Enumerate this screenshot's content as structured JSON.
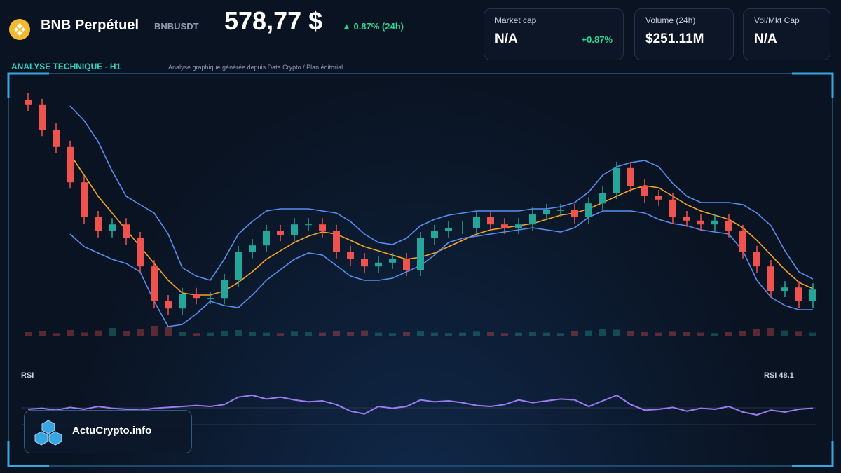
{
  "header": {
    "title": "BNB Perpétuel",
    "symbol": "BNBUSDT",
    "price": "578,77 $",
    "change": "▲ 0.87% (24h)"
  },
  "stats": [
    {
      "label": "Market cap",
      "value": "N/A",
      "extra": "+0.87%"
    },
    {
      "label": "Volume (24h)",
      "value": "$251.11M"
    },
    {
      "label": "Vol/Mkt Cap",
      "value": "N/A"
    }
  ],
  "panel": {
    "title": "ANALYSE TECHNIQUE - H1",
    "subtitle": "Analyse graphique générée depuis Data Crypto / Plan éditorial"
  },
  "brand": "ActuCrypto.info",
  "chart_data": {
    "type": "candlestick",
    "ylim": [
      566,
      626
    ],
    "up_color": "#26a69a",
    "down_color": "#ef5350",
    "ohlc": [
      [
        624,
        625.5,
        621.2,
        622.7
      ],
      [
        622.7,
        624.2,
        615.3,
        616.8
      ],
      [
        616.8,
        618.3,
        611.2,
        612.7
      ],
      [
        612.7,
        614.2,
        602.8,
        604.3
      ],
      [
        604.3,
        605.8,
        594.5,
        596
      ],
      [
        596,
        597.5,
        591.2,
        592.7
      ],
      [
        592.7,
        595.8,
        591.2,
        594.3
      ],
      [
        594.3,
        595.8,
        589.5,
        591
      ],
      [
        591,
        592.5,
        582.8,
        584.3
      ],
      [
        584.3,
        585.8,
        574.5,
        576
      ],
      [
        576,
        577.5,
        572.8,
        574.3
      ],
      [
        574.3,
        579.2,
        572.8,
        577.7
      ],
      [
        577.7,
        579.2,
        575.3,
        576.8
      ],
      [
        576.8,
        578.3,
        575.3,
        576.8
      ],
      [
        576.8,
        582.5,
        575.3,
        581
      ],
      [
        581,
        589.2,
        579.5,
        587.7
      ],
      [
        587.7,
        590.8,
        586.2,
        589.3
      ],
      [
        589.3,
        594.2,
        587.8,
        592.7
      ],
      [
        592.7,
        594.2,
        590.3,
        591.8
      ],
      [
        591.8,
        595.8,
        590.3,
        594.3
      ],
      [
        594.3,
        595.8,
        592.8,
        594.3
      ],
      [
        594.3,
        595.8,
        591.2,
        592.7
      ],
      [
        592.7,
        594.2,
        586.2,
        587.7
      ],
      [
        587.7,
        589.2,
        584.5,
        586
      ],
      [
        586,
        587.5,
        582.8,
        584.3
      ],
      [
        584.3,
        586.7,
        582.8,
        585.2
      ],
      [
        585.2,
        587.5,
        583.7,
        586
      ],
      [
        586,
        587.5,
        582,
        583.5
      ],
      [
        583.5,
        592.5,
        582,
        591
      ],
      [
        591,
        594.2,
        589.5,
        592.7
      ],
      [
        592.7,
        595,
        591.2,
        593.5
      ],
      [
        593.5,
        595,
        592,
        593.5
      ],
      [
        593.5,
        597.5,
        592,
        596
      ],
      [
        596,
        597.5,
        592.8,
        594.3
      ],
      [
        594.3,
        595.8,
        592,
        593.5
      ],
      [
        593.5,
        595.8,
        592,
        594.3
      ],
      [
        594.3,
        598.3,
        592.8,
        596.8
      ],
      [
        596.8,
        599.2,
        595.3,
        597.7
      ],
      [
        597.7,
        599.2,
        596.2,
        597.7
      ],
      [
        597.7,
        599.2,
        594.5,
        596
      ],
      [
        596,
        600.8,
        594.5,
        599.3
      ],
      [
        599.3,
        603.3,
        597.8,
        601.8
      ],
      [
        601.8,
        609.2,
        600.3,
        607.7
      ],
      [
        607.7,
        609.2,
        602,
        603.5
      ],
      [
        603.5,
        605,
        599.5,
        601
      ],
      [
        601,
        602.5,
        598.7,
        600.2
      ],
      [
        600.2,
        601.7,
        594.5,
        596
      ],
      [
        596,
        597.5,
        593.7,
        595.2
      ],
      [
        595.2,
        596.7,
        592.8,
        594.3
      ],
      [
        594.3,
        596.7,
        592.8,
        595.2
      ],
      [
        595.2,
        596.7,
        591.2,
        592.7
      ],
      [
        592.7,
        594.2,
        586.2,
        587.7
      ],
      [
        587.7,
        589.2,
        582.8,
        584.3
      ],
      [
        584.3,
        585.8,
        577,
        578.5
      ],
      [
        578.5,
        580.8,
        577,
        579.3
      ],
      [
        579.3,
        580.8,
        574.5,
        576
      ],
      [
        576,
        580.3,
        574.5,
        578.8
      ]
    ],
    "lines": [
      {
        "color": "#f5a623",
        "values": [
          null,
          null,
          null,
          611,
          606,
          601,
          597,
          593,
          589,
          585,
          581,
          578,
          577.5,
          577.5,
          578.5,
          580.5,
          583,
          586,
          588,
          590,
          591.5,
          592.5,
          592,
          590.5,
          589,
          588,
          587,
          586,
          586.5,
          587.5,
          589,
          590.5,
          592,
          593,
          593.5,
          594,
          594.5,
          595.5,
          596.5,
          597,
          598,
          599.5,
          601,
          602.5,
          603.5,
          603,
          601,
          599,
          597.5,
          596.5,
          595.5,
          593.5,
          590.5,
          587,
          583.5,
          580.5,
          579
        ]
      },
      {
        "color": "#5b8def",
        "values": [
          null,
          null,
          null,
          622.5,
          619,
          614,
          607,
          601,
          599,
          597,
          592,
          584,
          582,
          581,
          586,
          592,
          595,
          597.5,
          598,
          598,
          598,
          597.5,
          597,
          595,
          592,
          590,
          589.5,
          591,
          594,
          595.5,
          596.5,
          597,
          597.5,
          597.5,
          597.5,
          597.5,
          598,
          598,
          598.5,
          599.5,
          602,
          606,
          608,
          609,
          609.5,
          608,
          604,
          601,
          599.5,
          599.5,
          599.5,
          599,
          597,
          594,
          588,
          583,
          581.3
        ]
      },
      {
        "color": "#5b8def",
        "values": [
          null,
          null,
          null,
          592,
          589,
          587.5,
          586,
          585,
          583,
          576,
          570,
          570.5,
          573,
          576,
          575,
          574.5,
          577.5,
          581,
          583.5,
          586,
          587.5,
          587,
          584.5,
          582,
          581,
          581,
          581.5,
          583,
          584.5,
          587,
          590,
          591,
          591.5,
          592,
          592.5,
          593,
          593.5,
          593,
          592.5,
          593.5,
          596,
          597.5,
          597.5,
          597.5,
          597,
          595.5,
          594.5,
          594,
          593,
          592.5,
          592,
          588,
          581,
          577,
          575,
          574,
          574
        ]
      }
    ],
    "volume": {
      "vlim": [
        0,
        100
      ],
      "values": [
        10,
        12,
        8,
        15,
        9,
        14,
        20,
        12,
        18,
        25,
        22,
        10,
        8,
        9,
        12,
        15,
        10,
        9,
        8,
        11,
        10,
        9,
        12,
        10,
        14,
        9,
        8,
        10,
        12,
        9,
        8,
        9,
        11,
        10,
        8,
        9,
        10,
        9,
        8,
        12,
        14,
        18,
        16,
        12,
        10,
        9,
        11,
        10,
        9,
        8,
        10,
        12,
        18,
        20,
        14,
        11,
        9
      ]
    },
    "rsi": {
      "title": "RSI",
      "current_label": "RSI 48.1",
      "color": "#9b7cf0",
      "ylim": [
        20,
        80
      ],
      "values": [
        47,
        48,
        46,
        49,
        47,
        50,
        48,
        47,
        46,
        48,
        49,
        50,
        51,
        50,
        52,
        60,
        62,
        58,
        60,
        57,
        55,
        56,
        52,
        45,
        42,
        50,
        48,
        50,
        57,
        55,
        56,
        54,
        51,
        50,
        52,
        57,
        54,
        56,
        58,
        57,
        50,
        56,
        62,
        52,
        46,
        47,
        49,
        45,
        48,
        47,
        50,
        44,
        41,
        46,
        44,
        47,
        48.1
      ]
    }
  }
}
